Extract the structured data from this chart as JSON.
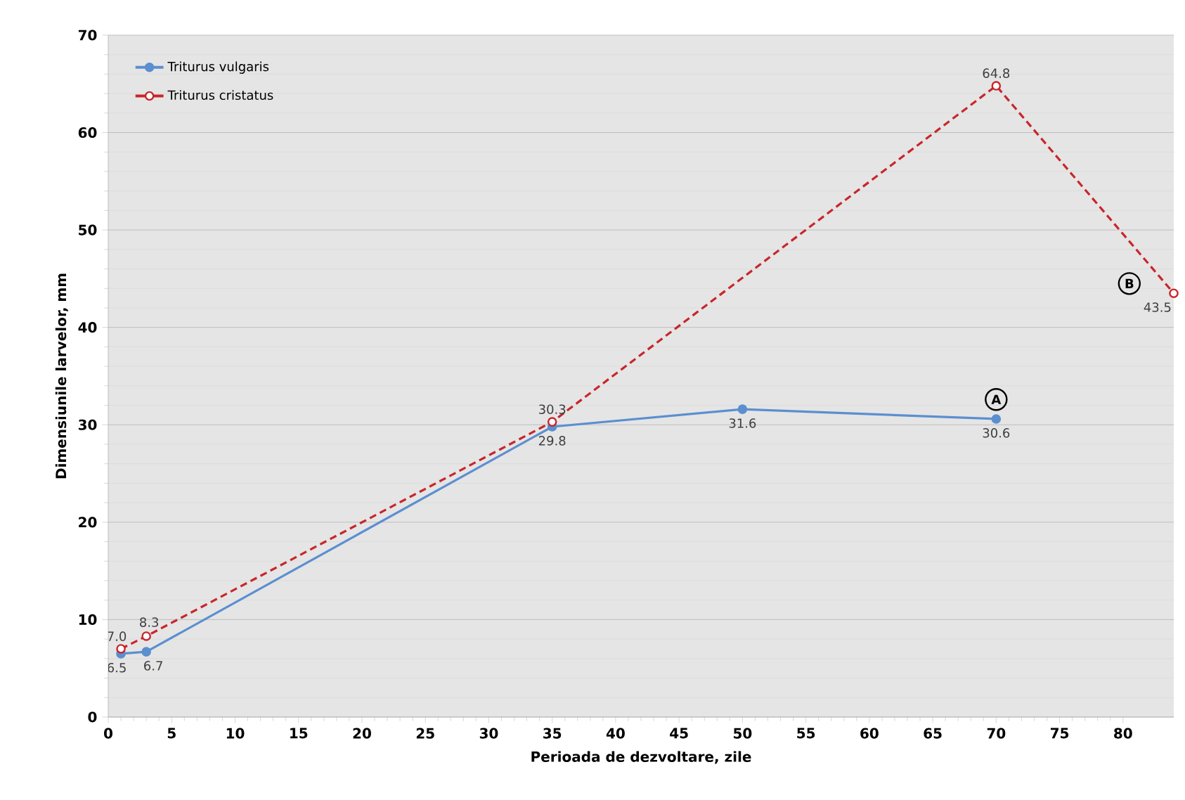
{
  "chart_data": {
    "type": "line",
    "xlabel": "Perioada de dezvoltare, zile",
    "ylabel": "Dimensiunile larvelor, mm",
    "xlim": [
      0,
      84
    ],
    "xticks": [
      0,
      5,
      10,
      15,
      20,
      25,
      30,
      35,
      40,
      45,
      50,
      55,
      60,
      65,
      70,
      75,
      80
    ],
    "ylim": [
      0,
      70
    ],
    "yticks": [
      0,
      10,
      20,
      30,
      40,
      50,
      60,
      70
    ],
    "grid": "y",
    "legend": "top left",
    "series": [
      {
        "name": "Triturus vulgaris",
        "color": "#5b8fd0",
        "marker": "circle",
        "line_style": "solid",
        "x": [
          1,
          3,
          35,
          50,
          70
        ],
        "values": [
          6.5,
          6.7,
          29.8,
          31.6,
          30.6
        ],
        "value_labels": [
          "6.5",
          "6.7",
          "29.8",
          "31.6",
          "30.6"
        ]
      },
      {
        "name": "Triturus cristatus",
        "color": "#c8262b",
        "marker": "circle",
        "line_style": "dashed",
        "x": [
          1,
          3,
          35,
          70,
          84
        ],
        "values": [
          7.0,
          8.3,
          30.3,
          64.8,
          43.5
        ],
        "value_labels": [
          "7.0",
          "8.3",
          "30.3",
          "64.8",
          "43.5"
        ]
      }
    ],
    "annotations": [
      {
        "text": "A",
        "x": 70,
        "y": 32.6
      },
      {
        "text": "B",
        "x": 80.5,
        "y": 44.5
      }
    ]
  }
}
